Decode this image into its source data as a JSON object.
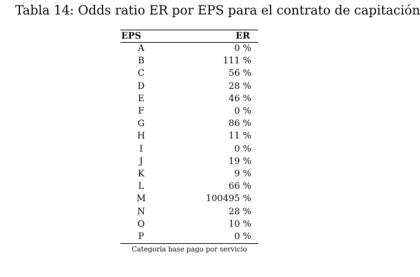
{
  "caption": "Tabla 14: Odds ratio ER por EPS para el contrato de capitación",
  "table": {
    "headers": {
      "eps": "EPS",
      "er": "ER"
    },
    "rows": [
      {
        "eps": "A",
        "er": "0 %"
      },
      {
        "eps": "B",
        "er": "111 %"
      },
      {
        "eps": "C",
        "er": "56 %"
      },
      {
        "eps": "D",
        "er": "28 %"
      },
      {
        "eps": "E",
        "er": "46 %"
      },
      {
        "eps": "F",
        "er": "0 %"
      },
      {
        "eps": "G",
        "er": "86 %"
      },
      {
        "eps": "H",
        "er": "11 %"
      },
      {
        "eps": "I",
        "er": "0 %"
      },
      {
        "eps": "J",
        "er": "19 %"
      },
      {
        "eps": "K",
        "er": "9 %"
      },
      {
        "eps": "L",
        "er": "66 %"
      },
      {
        "eps": "M",
        "er": "100495 %"
      },
      {
        "eps": "N",
        "er": "28 %"
      },
      {
        "eps": "O",
        "er": "10 %"
      },
      {
        "eps": "P",
        "er": "0 %"
      }
    ],
    "note": "Categoría base pago por servicio"
  }
}
